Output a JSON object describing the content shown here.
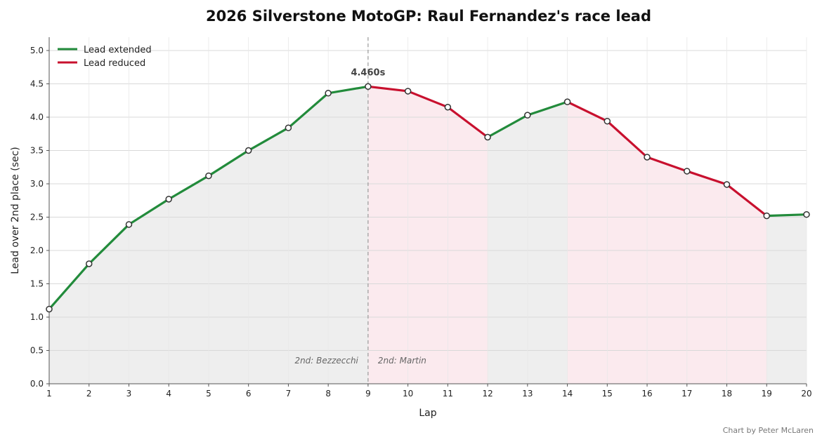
{
  "chart_data": {
    "type": "line",
    "title": "2026 Silverstone MotoGP: Raul Fernandez's race lead",
    "xlabel": "Lap",
    "ylabel": "Lead over 2nd place (sec)",
    "x": [
      1,
      2,
      3,
      4,
      5,
      6,
      7,
      8,
      9,
      10,
      11,
      12,
      13,
      14,
      15,
      16,
      17,
      18,
      19,
      20
    ],
    "y": [
      1.12,
      1.8,
      2.39,
      2.77,
      3.12,
      3.5,
      3.84,
      4.36,
      4.46,
      4.39,
      4.15,
      3.7,
      4.03,
      4.23,
      3.94,
      3.4,
      3.19,
      2.99,
      2.52,
      2.54
    ],
    "xlim": [
      1,
      20
    ],
    "ylim": [
      0,
      5.2
    ],
    "yticks": [
      "0.0",
      "0.5",
      "1.0",
      "1.5",
      "2.0",
      "2.5",
      "3.0",
      "3.5",
      "4.0",
      "4.5",
      "5.0"
    ],
    "xticks": [
      "1",
      "2",
      "3",
      "4",
      "5",
      "6",
      "7",
      "8",
      "9",
      "10",
      "11",
      "12",
      "13",
      "14",
      "15",
      "16",
      "17",
      "18",
      "19",
      "20"
    ],
    "grid": true,
    "legend": {
      "placement": "top-left",
      "entries": [
        {
          "label": "Lead extended",
          "color": "#228b3b"
        },
        {
          "label": "Lead reduced",
          "color": "#c8102e"
        }
      ]
    },
    "colors": {
      "extended": "#228b3b",
      "reduced": "#c8102e",
      "extended_fill": "#eeeeee",
      "reduced_fill": "#fbeaee"
    },
    "peak_label": "4.460s",
    "peak_lap": 9,
    "divider_lap": 9,
    "annotations": {
      "left": "2nd: Bezzecchi",
      "right": "2nd: Martin"
    }
  },
  "credit": "Chart by Peter McLaren"
}
